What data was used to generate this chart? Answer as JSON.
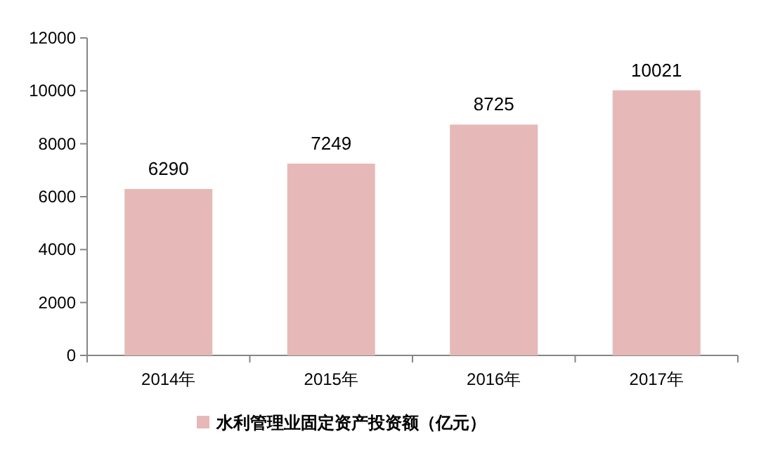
{
  "chart_data": {
    "type": "bar",
    "categories": [
      "2014年",
      "2015年",
      "2016年",
      "2017年"
    ],
    "series": [
      {
        "name": "水利管理业固定资产投资额（亿元）",
        "color": "#e6b9b8",
        "values": [
          6290,
          7249,
          8725,
          10021
        ]
      }
    ],
    "ylim": [
      0,
      12000
    ],
    "yticks": [
      0,
      2000,
      4000,
      6000,
      8000,
      10000,
      12000
    ],
    "data_labels": true,
    "legend": "bottom",
    "grid": false
  }
}
